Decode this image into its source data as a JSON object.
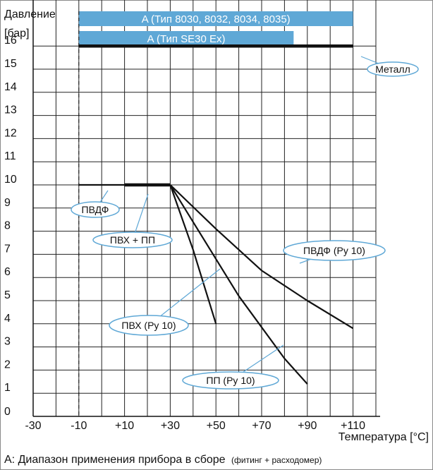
{
  "chart_data": {
    "type": "line",
    "ylabel": "Давление",
    "yunit": "[бар]",
    "xlabel": "Температура [°C]",
    "xlim": [
      -30,
      120
    ],
    "ylim": [
      0,
      16
    ],
    "x_ticks": [
      "-30",
      "-10",
      "+10",
      "+30",
      "+50",
      "+70",
      "+90",
      "+110"
    ],
    "y_ticks": [
      "0",
      "1",
      "2",
      "3",
      "4",
      "5",
      "6",
      "7",
      "8",
      "9",
      "10",
      "11",
      "12",
      "13",
      "14",
      "15",
      "16"
    ],
    "grid": true,
    "range_bars": [
      {
        "label": "A (Тип 8030, 8032, 8034, 8035)",
        "x_from": -10,
        "x_to": 110
      },
      {
        "label": "A (Тип SE30 Ex)",
        "x_from": -10,
        "x_to": 84
      }
    ],
    "series": [
      {
        "name": "Металл",
        "points": [
          [
            -10,
            16
          ],
          [
            110,
            16
          ]
        ],
        "bold": true
      },
      {
        "name": "ПВДФ",
        "points": [
          [
            -10,
            10
          ],
          [
            10,
            10
          ]
        ],
        "bold": false
      },
      {
        "name": "ПВХ + ПП",
        "points": [
          [
            10,
            10
          ],
          [
            30,
            10
          ]
        ],
        "bold": true
      },
      {
        "name": "ПВДФ (Ру 10)",
        "points": [
          [
            30,
            10
          ],
          [
            50,
            8.1
          ],
          [
            70,
            6.3
          ],
          [
            90,
            5
          ],
          [
            110,
            3.8
          ]
        ],
        "bold": false
      },
      {
        "name": "ПВХ (Ру 10)",
        "points": [
          [
            30,
            10
          ],
          [
            40,
            7.2
          ],
          [
            50,
            4
          ]
        ],
        "bold": false
      },
      {
        "name": "ПП (Ру 10)",
        "points": [
          [
            30,
            10
          ],
          [
            60,
            5.2
          ],
          [
            80,
            2.5
          ],
          [
            90,
            1.4
          ]
        ],
        "bold": false
      }
    ],
    "annotations": [
      {
        "text": "Металл",
        "series": "Металл"
      },
      {
        "text": "ПВДФ",
        "series": "ПВДФ"
      },
      {
        "text": "ПВХ + ПП",
        "series": "ПВХ + ПП"
      },
      {
        "text": "ПВДФ (Ру 10)",
        "series": "ПВДФ (Ру 10)"
      },
      {
        "text": "ПВХ (Ру 10)",
        "series": "ПВХ (Ру 10)"
      },
      {
        "text": "ПП (Ру 10)",
        "series": "ПП (Ру 10)"
      }
    ],
    "dashed_reference_x": -10,
    "bar_color": "#5fa8d6",
    "line_color": "#111111",
    "axis_color": "#111111"
  },
  "footnote": "A: Диапазон применения прибора в сборе",
  "footnote_small": "(фитинг + расходомер)"
}
